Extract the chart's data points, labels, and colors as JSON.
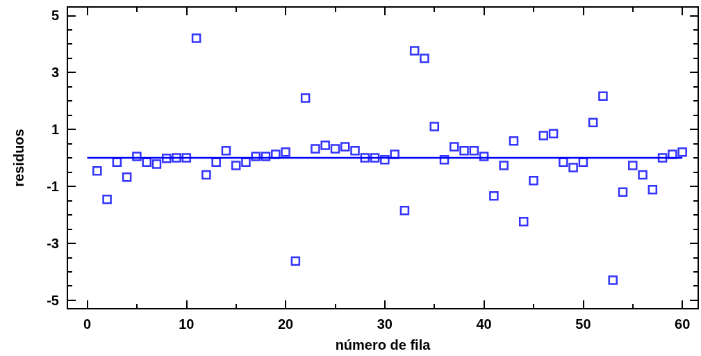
{
  "chart_data": {
    "type": "scatter",
    "xlabel": "número de fila",
    "ylabel": "residuos",
    "xlim": [
      -2,
      61.6
    ],
    "ylim": [
      -5.3,
      5.3
    ],
    "xticks": [
      0,
      {
        "value": 5,
        "label": null
      },
      10,
      {
        "value": 15,
        "label": null
      },
      20,
      {
        "value": 25,
        "label": null
      },
      30,
      {
        "value": 35,
        "label": null
      },
      40,
      {
        "value": 45,
        "label": null
      },
      50,
      {
        "value": 55,
        "label": null
      },
      60
    ],
    "yticks": [
      -5,
      {
        "value": -4.5,
        "label": null
      },
      {
        "value": -4,
        "label": null
      },
      {
        "value": -3.5,
        "label": null
      },
      -3,
      {
        "value": -2.5,
        "label": null
      },
      {
        "value": -2,
        "label": null
      },
      {
        "value": -1.5,
        "label": null
      },
      -1,
      {
        "value": -0.5,
        "label": null
      },
      {
        "value": 0,
        "label": null
      },
      {
        "value": 0.5,
        "label": null
      },
      1,
      {
        "value": 1.5,
        "label": null
      },
      {
        "value": 2,
        "label": null
      },
      {
        "value": 2.5,
        "label": null
      },
      3,
      {
        "value": 3.5,
        "label": null
      },
      {
        "value": 4,
        "label": null
      },
      {
        "value": 4.5,
        "label": null
      },
      5
    ],
    "grid": false,
    "series": [
      {
        "type": "scatter",
        "marker": "square",
        "color": "#0000ff",
        "x": [
          1,
          2,
          3,
          4,
          5,
          6,
          7,
          8,
          9,
          10,
          11,
          12,
          13,
          14,
          15,
          16,
          17,
          18,
          19,
          20,
          21,
          22,
          23,
          24,
          25,
          26,
          27,
          28,
          29,
          30,
          31,
          32,
          33,
          34,
          35,
          36,
          37,
          38,
          39,
          40,
          41,
          42,
          43,
          44,
          45,
          46,
          47,
          48,
          49,
          50,
          51,
          52,
          53,
          54,
          55,
          56,
          57,
          58,
          59,
          60
        ],
        "values": [
          -0.46,
          -1.46,
          -0.15,
          -0.68,
          0.05,
          -0.15,
          -0.22,
          -0.02,
          0,
          0,
          4.2,
          -0.6,
          -0.15,
          0.25,
          -0.27,
          -0.15,
          0.05,
          0.05,
          0.12,
          0.2,
          -3.63,
          2.1,
          0.32,
          0.44,
          0.32,
          0.39,
          0.25,
          0,
          0,
          -0.07,
          0.12,
          -1.85,
          3.76,
          3.49,
          1.1,
          -0.07,
          0.39,
          0.25,
          0.25,
          0.05,
          -1.34,
          -0.27,
          0.59,
          -2.24,
          -0.8,
          0.78,
          0.85,
          -0.15,
          -0.34,
          -0.15,
          1.24,
          2.17,
          -4.3,
          -1.2,
          -0.27,
          -0.6,
          -1.12,
          0,
          0.12,
          0.2
        ]
      },
      {
        "type": "line",
        "marker": "none",
        "line_style": "solid",
        "color": "#0000ff",
        "x": [
          0,
          60
        ],
        "values": [
          0,
          0
        ]
      }
    ]
  }
}
